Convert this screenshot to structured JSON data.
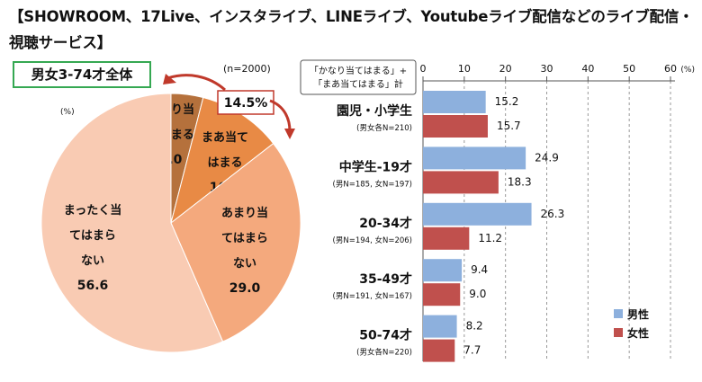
{
  "title": "【SHOWROOM、17Live、インスタライブ、LINEライブ、Youtubeライブ配信などのライブ配信・視聴サービス】",
  "subset_label": "男女3-74才全体",
  "chart_data": [
    {
      "type": "pie",
      "sample": "(n=2000)",
      "unit": "(%)",
      "callout": "14.5%",
      "slices": [
        {
          "label": [
            "かなり当",
            "てはまる"
          ],
          "value": 4.0,
          "value_text": "4.0",
          "color": "#b5713c"
        },
        {
          "label": [
            "まあ当て",
            "はまる"
          ],
          "value": 10.5,
          "value_text": "10.5",
          "color": "#e88a45"
        },
        {
          "label": [
            "あまり当",
            "てはまら",
            "ない"
          ],
          "value": 29.0,
          "value_text": "29.0",
          "color": "#f4a97d"
        },
        {
          "label": [
            "まったく当",
            "てはまら",
            "ない"
          ],
          "value": 56.6,
          "value_text": "56.6",
          "color": "#f9cbb3"
        }
      ]
    },
    {
      "type": "bar",
      "orientation": "horizontal",
      "criterion": [
        "「かなり当てはまる」+",
        "「まあ当てはまる」計"
      ],
      "xlim": [
        0,
        60
      ],
      "ticks": [
        "0",
        "10",
        "20",
        "30",
        "40",
        "50",
        "60"
      ],
      "unit": "(%)",
      "colors": {
        "male": "#8db0dd",
        "female": "#c0504d"
      },
      "legend": {
        "male": "男性",
        "female": "女性"
      },
      "groups": [
        {
          "name": "園児・小学生",
          "sample": "(男女各N=210)",
          "male": 15.2,
          "male_text": "15.2",
          "female": 15.7,
          "female_text": "15.7"
        },
        {
          "name": "中学生-19才",
          "sample": "(男N=185, 女N=197)",
          "male": 24.9,
          "male_text": "24.9",
          "female": 18.3,
          "female_text": "18.3"
        },
        {
          "name": "20-34才",
          "sample": "(男N=194, 女N=206)",
          "male": 26.3,
          "male_text": "26.3",
          "female": 11.2,
          "female_text": "11.2"
        },
        {
          "name": "35-49才",
          "sample": "(男N=191, 女N=167)",
          "male": 9.4,
          "male_text": "9.4",
          "female": 9.0,
          "female_text": "9.0"
        },
        {
          "name": "50-74才",
          "sample": "(男女各N=220)",
          "male": 8.2,
          "male_text": "8.2",
          "female": 7.7,
          "female_text": "7.7"
        }
      ]
    }
  ]
}
